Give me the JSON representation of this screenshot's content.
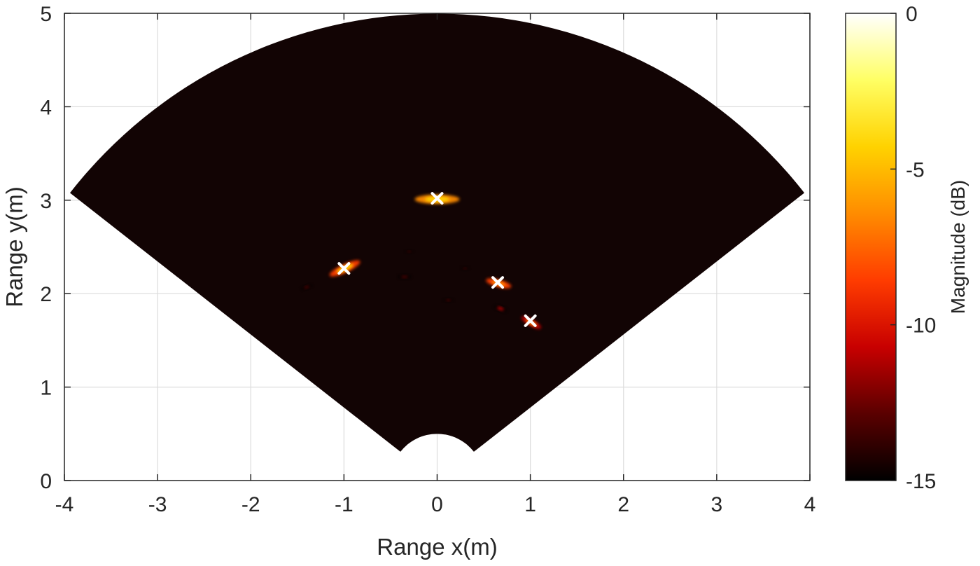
{
  "chart_data": {
    "type": "heatmap",
    "subtype": "polar-range-angle-map",
    "xlabel": "Range x(m)",
    "ylabel": "Range y(m)",
    "xlim": [
      -4,
      4
    ],
    "ylim": [
      0,
      5
    ],
    "xticks": [
      -4,
      -3,
      -2,
      -1,
      0,
      1,
      2,
      3,
      4
    ],
    "yticks": [
      0,
      1,
      2,
      3,
      4,
      5
    ],
    "grid": true,
    "sector": {
      "min_range": 0.5,
      "max_range": 5,
      "min_angle_deg": -52,
      "max_angle_deg": 52
    },
    "colormap": "hot",
    "background_color": "#120404",
    "colorbar": {
      "label": "Magnitude (dB)",
      "min": -15,
      "max": 0,
      "ticks": [
        0,
        -5,
        -10,
        -15
      ],
      "stops": [
        "#000000",
        "#5a0000",
        "#c80000",
        "#ff3c00",
        "#ff8c00",
        "#ffd200",
        "#ffff64",
        "#ffffff"
      ]
    },
    "targets": [
      {
        "x": 0.0,
        "y": 3.02
      },
      {
        "x": -1.0,
        "y": 2.27
      },
      {
        "x": 0.65,
        "y": 2.12
      },
      {
        "x": 1.0,
        "y": 1.71
      }
    ],
    "blobs": [
      {
        "x": 0.0,
        "y": 3.01,
        "rx": 0.24,
        "ry": 0.05,
        "angle": 0,
        "level": -4
      },
      {
        "x": -0.99,
        "y": 2.27,
        "rx": 0.18,
        "ry": 0.045,
        "angle": -25,
        "level": -5
      },
      {
        "x": 0.66,
        "y": 2.11,
        "rx": 0.14,
        "ry": 0.04,
        "angle": 15,
        "level": -6
      },
      {
        "x": 1.01,
        "y": 1.69,
        "rx": 0.12,
        "ry": 0.035,
        "angle": 30,
        "level": -7
      },
      {
        "x": -1.4,
        "y": 2.07,
        "rx": 0.06,
        "ry": 0.02,
        "angle": -20,
        "level": -12
      },
      {
        "x": -0.35,
        "y": 2.18,
        "rx": 0.07,
        "ry": 0.02,
        "angle": 0,
        "level": -12
      },
      {
        "x": 0.68,
        "y": 1.84,
        "rx": 0.07,
        "ry": 0.025,
        "angle": 20,
        "level": -11
      },
      {
        "x": 0.12,
        "y": 1.93,
        "rx": 0.05,
        "ry": 0.018,
        "angle": 0,
        "level": -13
      },
      {
        "x": -0.3,
        "y": 2.45,
        "rx": 0.04,
        "ry": 0.015,
        "angle": 0,
        "level": -13
      },
      {
        "x": 0.3,
        "y": 2.27,
        "rx": 0.04,
        "ry": 0.015,
        "angle": 0,
        "level": -13
      }
    ]
  }
}
